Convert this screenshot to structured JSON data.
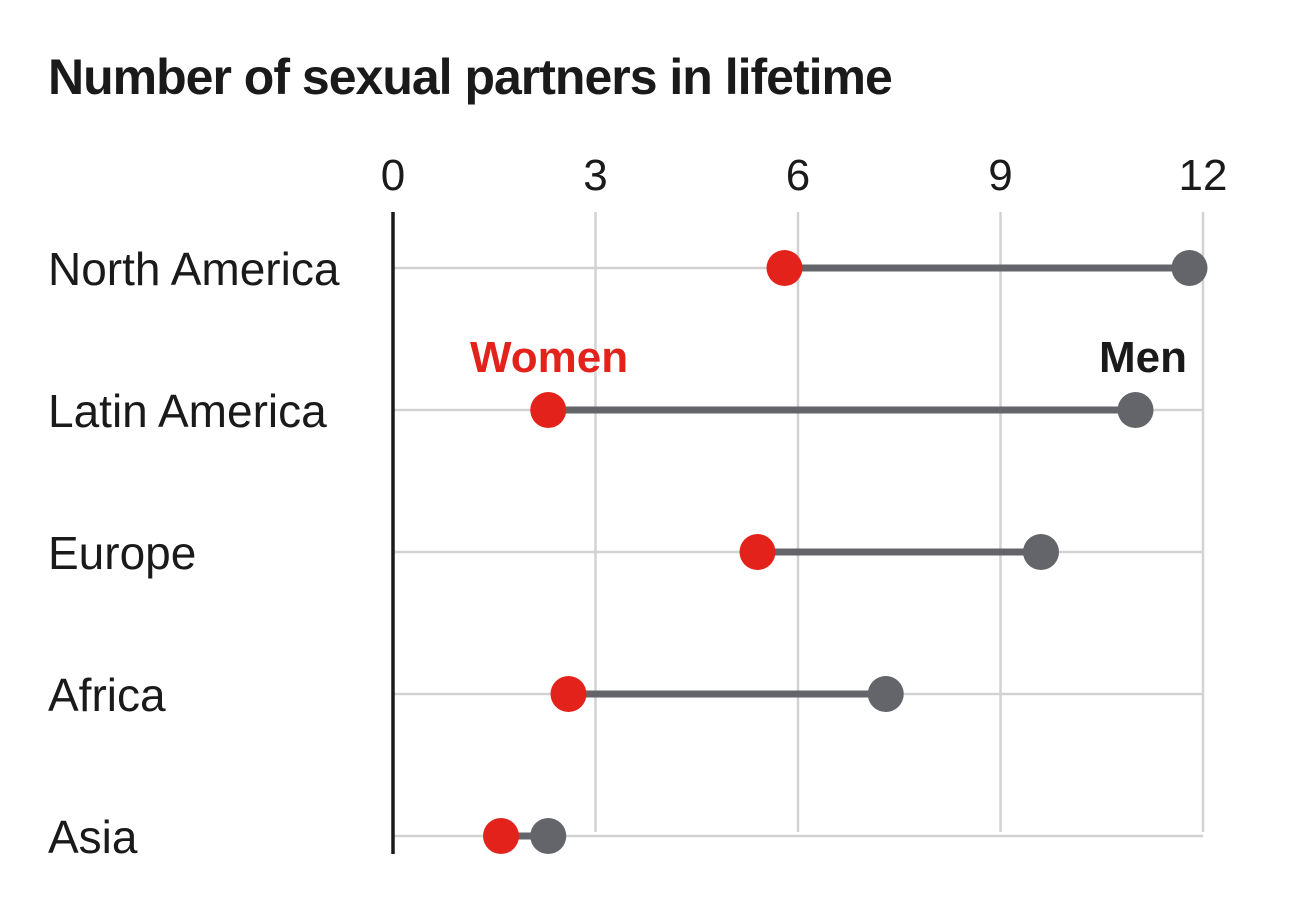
{
  "chart_data": {
    "type": "dumbbell",
    "title": "Number of sexual partners in lifetime",
    "xlabel": "",
    "ylabel": "",
    "xlim": [
      0,
      12
    ],
    "xticks": [
      0,
      3,
      6,
      9,
      12
    ],
    "grid": true,
    "categories": [
      "North America",
      "Latin America",
      "Europe",
      "Africa",
      "Asia"
    ],
    "series": [
      {
        "name": "Women",
        "color": "#e3231b",
        "values": [
          5.8,
          2.3,
          5.4,
          2.6,
          1.6
        ]
      },
      {
        "name": "Men",
        "color": "#64656a",
        "values": [
          11.8,
          11.0,
          9.6,
          7.3,
          2.3
        ]
      }
    ],
    "legend": {
      "placement": "inline",
      "row": 1
    },
    "colors": {
      "connector": "#64656a",
      "grid": "#d2d2d2",
      "axis": "#1a1a1a"
    }
  }
}
